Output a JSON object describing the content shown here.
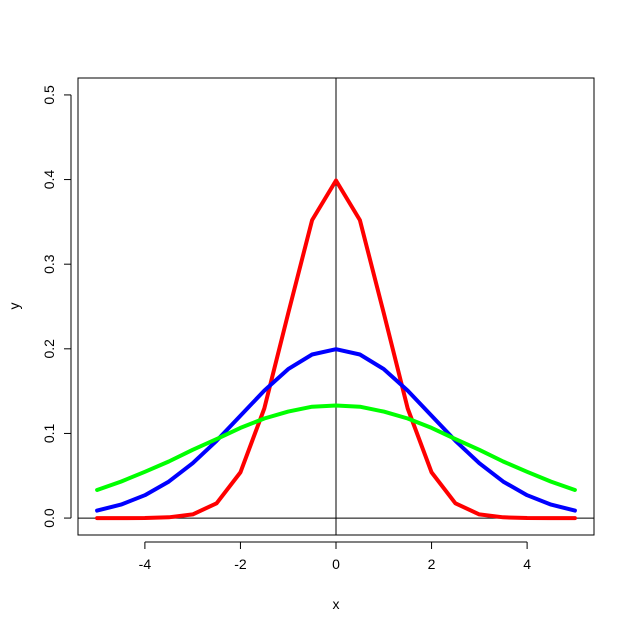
{
  "chart_data": {
    "type": "line",
    "title": "",
    "xlabel": "x",
    "ylabel": "y",
    "xlim": [
      -5.4,
      5.4
    ],
    "ylim": [
      -0.02,
      0.52
    ],
    "x_ticks": [
      -4,
      -2,
      0,
      2,
      4
    ],
    "x_tick_labels": [
      "-4",
      "-2",
      "0",
      "2",
      "4"
    ],
    "y_ticks": [
      0.0,
      0.1,
      0.2,
      0.3,
      0.4,
      0.5
    ],
    "y_tick_labels": [
      "0.0",
      "0.1",
      "0.2",
      "0.3",
      "0.4",
      "0.5"
    ],
    "grid": false,
    "reference_lines": {
      "horizontal_y": 0,
      "vertical_x": 0
    },
    "x": [
      -5,
      -4.5,
      -4,
      -3.5,
      -3,
      -2.5,
      -2,
      -1.5,
      -1,
      -0.5,
      0,
      0.5,
      1,
      1.5,
      2,
      2.5,
      3,
      3.5,
      4,
      4.5,
      5
    ],
    "series": [
      {
        "color": "#ff0000",
        "values": [
          0.0,
          0.0,
          0.0001,
          0.0009,
          0.0044,
          0.0175,
          0.054,
          0.1295,
          0.242,
          0.3521,
          0.3989,
          0.3521,
          0.242,
          0.1295,
          0.054,
          0.0175,
          0.0044,
          0.0009,
          0.0001,
          0.0,
          0.0
        ]
      },
      {
        "color": "#0000ff",
        "values": [
          0.0088,
          0.0159,
          0.027,
          0.0431,
          0.0648,
          0.0913,
          0.121,
          0.1506,
          0.176,
          0.1933,
          0.1995,
          0.1933,
          0.176,
          0.1506,
          0.121,
          0.0913,
          0.0648,
          0.0431,
          0.027,
          0.0159,
          0.0088
        ]
      },
      {
        "color": "#00ff00",
        "values": [
          0.0332,
          0.0431,
          0.0547,
          0.0668,
          0.0807,
          0.0933,
          0.1065,
          0.1177,
          0.1258,
          0.1316,
          0.133,
          0.1316,
          0.1258,
          0.1177,
          0.1065,
          0.0933,
          0.0807,
          0.0668,
          0.0547,
          0.0431,
          0.0332
        ]
      }
    ]
  }
}
